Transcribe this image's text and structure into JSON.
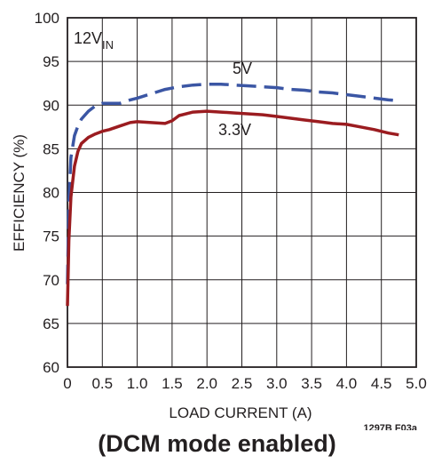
{
  "chart_data": {
    "type": "line",
    "xlabel": "LOAD CURRENT (A)",
    "ylabel": "EFFICIENCY (%)",
    "xlim": [
      0,
      5.0
    ],
    "ylim": [
      60,
      100
    ],
    "x_ticks": [
      "0",
      "0.5",
      "1.0",
      "1.5",
      "2.0",
      "2.5",
      "3.0",
      "3.5",
      "4.0",
      "4.5",
      "5.0"
    ],
    "y_ticks": [
      "60",
      "65",
      "70",
      "75",
      "80",
      "85",
      "90",
      "95",
      "100"
    ],
    "grid": true,
    "annotation_input": "12V",
    "annotation_input_sub": "IN",
    "figure_id": "1297B F03a",
    "series": [
      {
        "name": "5V",
        "color": "#3b56a4",
        "dash": "dashed",
        "x": [
          0.0,
          0.02,
          0.05,
          0.1,
          0.15,
          0.2,
          0.3,
          0.4,
          0.5,
          0.6,
          0.75,
          0.9,
          1.0,
          1.2,
          1.4,
          1.6,
          1.8,
          2.0,
          2.2,
          2.4,
          2.6,
          2.8,
          3.0,
          3.2,
          3.4,
          3.6,
          3.8,
          4.0,
          4.2,
          4.4,
          4.6,
          4.75
        ],
        "y": [
          69.5,
          79.0,
          84.0,
          86.5,
          87.6,
          88.4,
          89.3,
          89.9,
          90.2,
          90.2,
          90.2,
          90.6,
          90.8,
          91.3,
          91.8,
          92.1,
          92.3,
          92.4,
          92.4,
          92.3,
          92.2,
          92.1,
          92.0,
          91.8,
          91.7,
          91.5,
          91.4,
          91.2,
          91.0,
          90.8,
          90.6,
          90.5
        ]
      },
      {
        "name": "3.3V",
        "color": "#9b1c20",
        "dash": "solid",
        "x": [
          0.0,
          0.02,
          0.05,
          0.1,
          0.15,
          0.2,
          0.3,
          0.4,
          0.5,
          0.6,
          0.75,
          0.9,
          1.0,
          1.2,
          1.4,
          1.5,
          1.6,
          1.8,
          2.0,
          2.2,
          2.4,
          2.6,
          2.8,
          3.0,
          3.2,
          3.4,
          3.6,
          3.8,
          4.0,
          4.2,
          4.4,
          4.6,
          4.75
        ],
        "y": [
          67.0,
          74.5,
          79.5,
          83.0,
          84.7,
          85.6,
          86.3,
          86.7,
          87.0,
          87.2,
          87.6,
          88.0,
          88.1,
          88.0,
          87.9,
          88.2,
          88.8,
          89.2,
          89.3,
          89.2,
          89.1,
          89.0,
          88.9,
          88.7,
          88.5,
          88.3,
          88.1,
          87.9,
          87.8,
          87.5,
          87.2,
          86.8,
          86.6
        ]
      }
    ]
  },
  "caption": "(DCM mode enabled)"
}
